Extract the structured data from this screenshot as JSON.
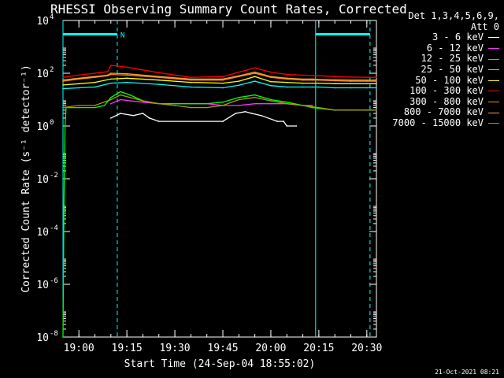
{
  "chart_data": {
    "type": "line",
    "title": "RHESSI Observing Summary Count Rates, Corrected",
    "xlabel": "Start Time (24-Sep-04 18:55:02)",
    "ylabel": "Corrected Count Rate (s⁻¹ detector⁻¹)",
    "yscale": "log",
    "ylim": [
      1e-08,
      10000.0
    ],
    "xlim": [
      "18:55:02",
      "20:33:00"
    ],
    "x_ticks": [
      "19:00",
      "19:15",
      "19:30",
      "19:45",
      "20:00",
      "20:15",
      "20:30"
    ],
    "y_ticks": [
      {
        "base": "10",
        "exp": "4"
      },
      {
        "base": "10",
        "exp": "2"
      },
      {
        "base": "10",
        "exp": "0"
      },
      {
        "base": "10",
        "exp": "-2"
      },
      {
        "base": "10",
        "exp": "-4"
      },
      {
        "base": "10",
        "exp": "-6"
      },
      {
        "base": "10",
        "exp": "-8"
      }
    ],
    "legend_header": [
      "Det 1,3,4,5,6,9,",
      "Att 0"
    ],
    "legend_position": "top-right outside",
    "series": [
      {
        "name": "3 - 6 keV",
        "color": "#ffffff",
        "x": [
          "19:10",
          "19:13",
          "19:17",
          "19:20",
          "19:22",
          "19:25",
          "19:45",
          "19:49",
          "19:52",
          "19:54",
          "19:57",
          "20:02",
          "20:04",
          "20:05",
          "20:08"
        ],
        "y": [
          2,
          3,
          2.5,
          3,
          2,
          1.5,
          1.5,
          3,
          3.5,
          3,
          2.5,
          1.5,
          1.5,
          1,
          1
        ]
      },
      {
        "name": "6 - 12 keV",
        "color": "#ff33ff",
        "x": [
          "19:10",
          "19:13",
          "19:16",
          "19:20",
          "19:25",
          "19:30",
          "19:40",
          "19:45",
          "19:50",
          "19:55",
          "20:00",
          "20:05",
          "20:10",
          "20:13"
        ],
        "y": [
          7,
          10,
          9,
          8,
          7,
          7,
          7,
          6,
          6,
          7,
          7,
          7,
          6,
          6
        ]
      },
      {
        "name": "12 - 25 keV",
        "color": "#00ff00",
        "x": [
          "18:55:02",
          "18:55:20",
          "18:55:40",
          "18:56",
          "18:57",
          "19:00",
          "19:05",
          "19:08",
          "19:10",
          "19:13",
          "19:16",
          "19:20",
          "19:25",
          "19:30",
          "19:35",
          "19:40",
          "19:45",
          "19:50",
          "19:55",
          "20:00",
          "20:05",
          "20:10",
          "20:13",
          "20:20",
          "20:30",
          "20:33"
        ],
        "y": [
          1e-08,
          0.001,
          1,
          5,
          5,
          5,
          5,
          6,
          12,
          20,
          15,
          9,
          7,
          7,
          7,
          7,
          8,
          12,
          15,
          10,
          8,
          6,
          5,
          4,
          4,
          4
        ]
      },
      {
        "name": "25 - 50 keV",
        "color": "#00ffff",
        "x": [
          "18:55:02",
          "19:00",
          "19:05",
          "19:10",
          "19:15",
          "19:25",
          "19:35",
          "19:45",
          "19:50",
          "19:55",
          "20:00",
          "20:05",
          "20:10",
          "20:13",
          "20:15",
          "20:20",
          "20:25",
          "20:30",
          "20:33"
        ],
        "y": [
          26,
          28,
          30,
          42,
          45,
          38,
          30,
          28,
          35,
          50,
          34,
          30,
          30,
          30,
          30,
          28,
          28,
          28,
          28
        ]
      },
      {
        "name": "50 - 100 keV",
        "color": "#ffff00",
        "x": [
          "18:55:02",
          "19:00",
          "19:05",
          "19:10",
          "19:15",
          "19:25",
          "19:35",
          "19:45",
          "19:50",
          "19:55",
          "20:00",
          "20:05",
          "20:10",
          "20:13",
          "20:15",
          "20:20",
          "20:25",
          "20:30",
          "20:33"
        ],
        "y": [
          36,
          40,
          45,
          60,
          65,
          55,
          45,
          42,
          50,
          75,
          48,
          45,
          42,
          42,
          42,
          40,
          40,
          40,
          40
        ]
      },
      {
        "name": "100 - 300 keV",
        "color": "#ff0000",
        "x": [
          "18:55:02",
          "19:00",
          "19:05",
          "19:09",
          "19:10",
          "19:15",
          "19:25",
          "19:35",
          "19:45",
          "19:50",
          "19:55",
          "20:00",
          "20:05",
          "20:10",
          "20:13",
          "20:15",
          "20:20",
          "20:25",
          "20:30",
          "20:33"
        ],
        "y": [
          70,
          85,
          100,
          115,
          200,
          170,
          105,
          70,
          75,
          110,
          160,
          110,
          90,
          85,
          82,
          80,
          75,
          72,
          70,
          70
        ]
      },
      {
        "name": "300 - 800 keV",
        "color": "#ff8c00",
        "x": [
          "18:55:02",
          "19:00",
          "19:05",
          "19:09",
          "19:10",
          "19:15",
          "19:25",
          "19:35",
          "19:45",
          "19:50",
          "19:55",
          "20:00",
          "20:05",
          "20:10",
          "20:13",
          "20:15",
          "20:20",
          "20:25",
          "20:30",
          "20:33"
        ],
        "y": [
          50,
          60,
          70,
          80,
          90,
          85,
          70,
          55,
          55,
          75,
          100,
          70,
          60,
          55,
          55,
          55,
          52,
          50,
          50,
          50
        ]
      },
      {
        "name": "800 - 7000 keV",
        "color": "#ff9a40",
        "x": [
          "18:55:02",
          "19:00",
          "19:05",
          "19:09",
          "19:10",
          "19:15",
          "19:25",
          "19:35",
          "19:45",
          "19:50",
          "19:55",
          "20:00",
          "20:05",
          "20:10",
          "20:13",
          "20:15",
          "20:20",
          "20:25",
          "20:30",
          "20:33"
        ],
        "y": [
          55,
          65,
          75,
          85,
          100,
          95,
          75,
          60,
          60,
          80,
          110,
          75,
          65,
          60,
          60,
          58,
          56,
          55,
          55,
          55
        ]
      },
      {
        "name": "7000 - 15000 keV",
        "color": "#a0a000",
        "x": [
          "18:55:02",
          "19:00",
          "19:05",
          "19:10",
          "19:13",
          "19:16",
          "19:20",
          "19:25",
          "19:30",
          "19:35",
          "19:40",
          "19:45",
          "19:50",
          "19:55",
          "20:00",
          "20:05",
          "20:10",
          "20:15",
          "20:20",
          "20:25",
          "20:30",
          "20:33"
        ],
        "y": [
          5,
          6,
          6,
          10,
          15,
          12,
          9,
          7,
          6,
          5,
          5,
          6,
          10,
          12,
          9,
          7,
          6,
          5,
          4,
          4,
          4,
          4
        ]
      }
    ],
    "night_bars": [
      {
        "start": "18:55:02",
        "end": "19:12",
        "level": 3000,
        "label": "N"
      },
      {
        "start": "20:14",
        "end": "20:31",
        "level": 3000,
        "label": ""
      }
    ],
    "vertical_markers": [
      {
        "time": "18:55:02",
        "style": "solid"
      },
      {
        "time": "19:12",
        "style": "dashed"
      },
      {
        "time": "20:14",
        "style": "solid"
      },
      {
        "time": "20:31",
        "style": "dashed"
      }
    ],
    "marker_color": "#00ffff"
  },
  "timestamp": "21-Oct-2021 08:21"
}
